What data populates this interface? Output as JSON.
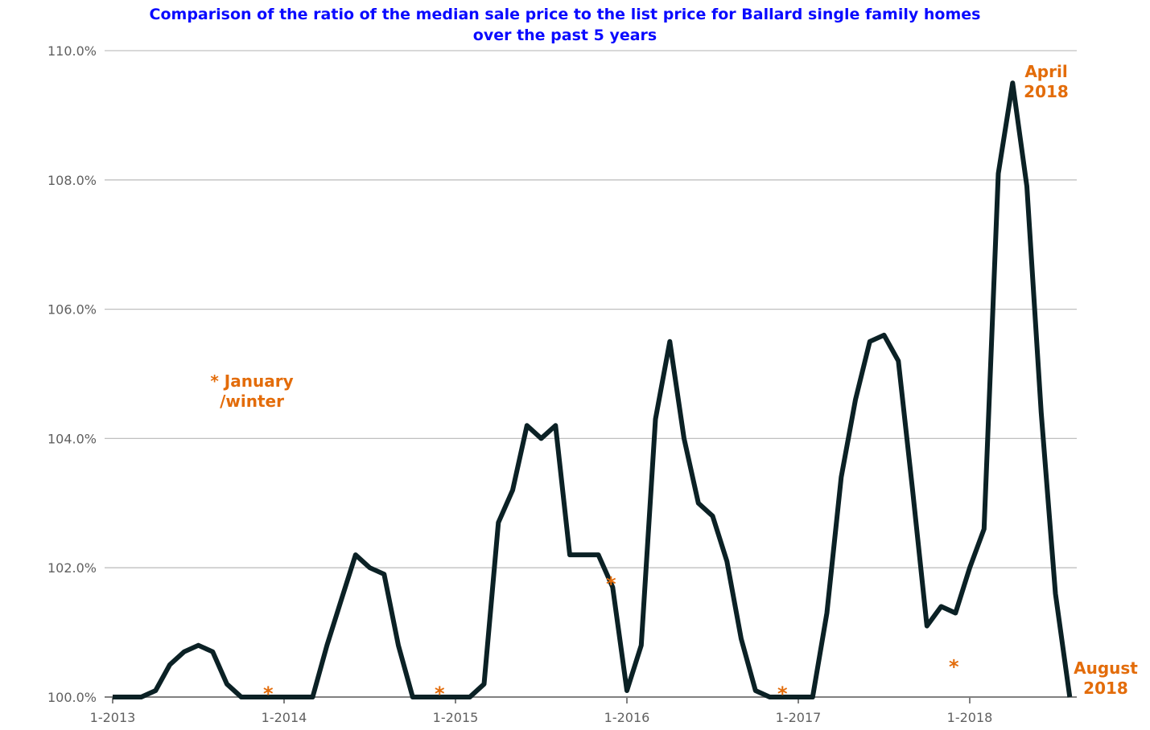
{
  "chart_data": {
    "type": "line",
    "title_lines": [
      "Comparison of the ratio of the median sale price to the list price for Ballard single family homes",
      "over the past 5 years"
    ],
    "xlabel": "",
    "ylabel": "",
    "ylim": [
      100.0,
      110.0
    ],
    "y_ticks": [
      "100.0%",
      "102.0%",
      "104.0%",
      "106.0%",
      "108.0%",
      "110.0%"
    ],
    "x_ticks": [
      "1-2013",
      "1-2014",
      "1-2015",
      "1-2016",
      "1-2017",
      "1-2018"
    ],
    "grid": "horizontal",
    "line_color": "#0b2125",
    "annotation_color": "#e36c0a",
    "x": [
      "1-2013",
      "2-2013",
      "3-2013",
      "4-2013",
      "5-2013",
      "6-2013",
      "7-2013",
      "8-2013",
      "9-2013",
      "10-2013",
      "11-2013",
      "12-2013",
      "1-2014",
      "2-2014",
      "3-2014",
      "4-2014",
      "5-2014",
      "6-2014",
      "7-2014",
      "8-2014",
      "9-2014",
      "10-2014",
      "11-2014",
      "12-2014",
      "1-2015",
      "2-2015",
      "3-2015",
      "4-2015",
      "5-2015",
      "6-2015",
      "7-2015",
      "8-2015",
      "9-2015",
      "10-2015",
      "11-2015",
      "12-2015",
      "1-2016",
      "2-2016",
      "3-2016",
      "4-2016",
      "5-2016",
      "6-2016",
      "7-2016",
      "8-2016",
      "9-2016",
      "10-2016",
      "11-2016",
      "12-2016",
      "1-2017",
      "2-2017",
      "3-2017",
      "4-2017",
      "5-2017",
      "6-2017",
      "7-2017",
      "8-2017",
      "9-2017",
      "10-2017",
      "11-2017",
      "12-2017",
      "1-2018",
      "2-2018",
      "3-2018",
      "4-2018",
      "5-2018",
      "6-2018",
      "7-2018",
      "8-2018"
    ],
    "series": [
      {
        "values": [
          100.0,
          100.0,
          100.0,
          100.1,
          100.5,
          100.7,
          100.8,
          100.7,
          100.2,
          100.0,
          100.0,
          100.0,
          100.0,
          100.0,
          100.0,
          100.8,
          101.5,
          102.2,
          102.0,
          101.9,
          100.8,
          100.0,
          100.0,
          100.0,
          100.0,
          100.0,
          100.2,
          102.7,
          103.2,
          104.2,
          104.0,
          104.2,
          102.2,
          102.2,
          102.2,
          101.7,
          100.1,
          100.8,
          104.3,
          105.5,
          104.0,
          103.0,
          102.8,
          102.1,
          100.9,
          100.1,
          100.0,
          100.0,
          100.0,
          100.0,
          101.3,
          103.4,
          104.6,
          105.5,
          105.6,
          105.2,
          103.2,
          101.1,
          101.4,
          101.3,
          102.0,
          102.6,
          108.1,
          109.5,
          107.9,
          104.4,
          101.6,
          100.0
        ]
      }
    ],
    "annotations": {
      "legend_note_line1": "* January",
      "legend_note_line2": "/winter",
      "peak_label_line1": "April",
      "peak_label_line2": "2018",
      "end_label_line1": "August",
      "end_label_line2": "2018",
      "star": "*"
    },
    "star_months": [
      "12-2013",
      "12-2014",
      "12-2015",
      "12-2016",
      "12-2017"
    ]
  }
}
